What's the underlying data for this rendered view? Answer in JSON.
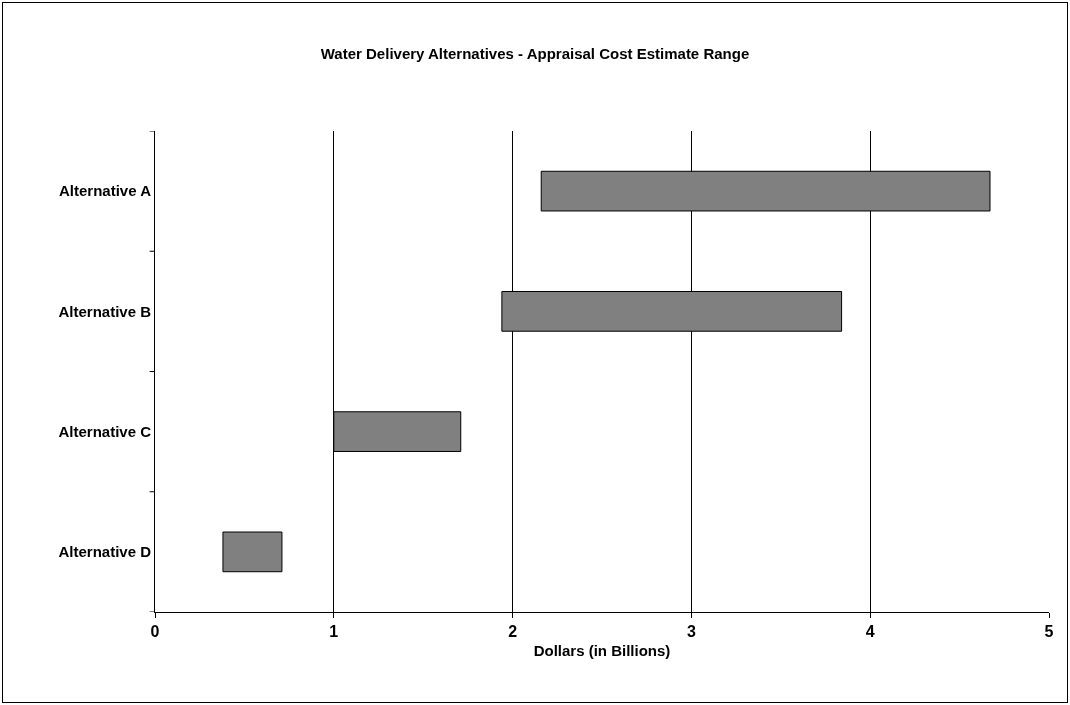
{
  "chart_data": {
    "type": "bar",
    "orientation": "horizontal",
    "title": "Water Delivery Alternatives - Appraisal Cost Estimate Range",
    "xlabel": "Dollars (in Billions)",
    "categories": [
      "Alternative A",
      "Alternative B",
      "Alternative C",
      "Alternative D"
    ],
    "base": [
      2.16,
      1.94,
      1.0,
      0.38
    ],
    "values": [
      2.51,
      1.9,
      0.71,
      0.33
    ],
    "color": "#808080",
    "xlim": [
      0,
      5
    ],
    "xticks": [
      0,
      1,
      2,
      3,
      4,
      5
    ],
    "grid": "x"
  }
}
